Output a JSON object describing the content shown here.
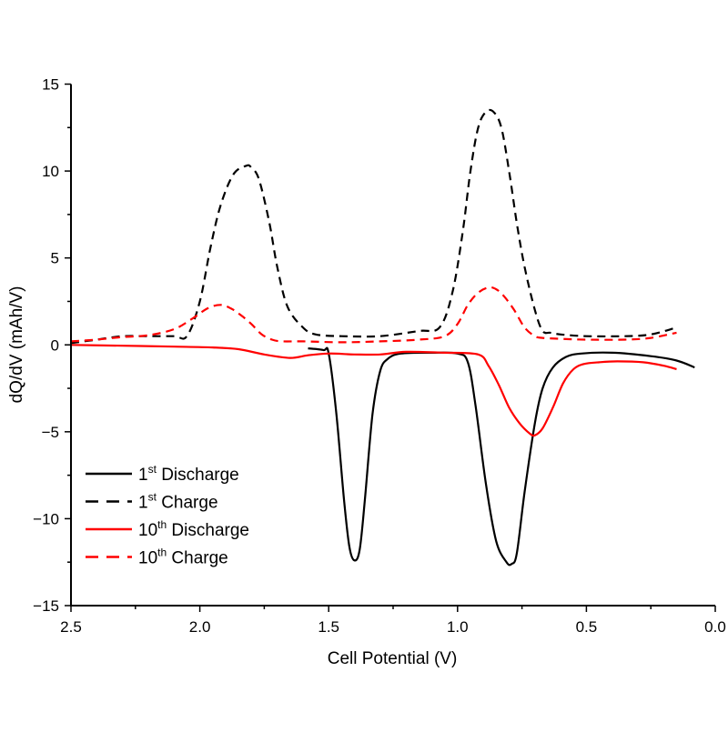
{
  "chart_data": {
    "type": "line",
    "title": "",
    "xlabel": "Cell Potential (V)",
    "ylabel": "dQ/dV (mAh/V)",
    "xlim": [
      2.5,
      0.0
    ],
    "ylim": [
      -15,
      15
    ],
    "x_reversed": true,
    "x_ticks": [
      "2.5",
      "2.0",
      "1.5",
      "1.0",
      "0.5",
      "0.0"
    ],
    "y_ticks": [
      "15",
      "10",
      "5",
      "0",
      "−5",
      "−10",
      "−15"
    ],
    "grid": false,
    "legend_position": "bottom-left",
    "series": [
      {
        "name": "1st Discharge",
        "color": "#000000",
        "dash": "solid",
        "x": [
          1.58,
          1.52,
          1.5,
          1.47,
          1.44,
          1.42,
          1.4,
          1.38,
          1.36,
          1.33,
          1.3,
          1.27,
          1.22,
          1.1,
          1.0,
          0.96,
          0.93,
          0.89,
          0.85,
          0.81,
          0.79,
          0.77,
          0.74,
          0.7,
          0.67,
          0.63,
          0.58,
          0.52,
          0.4,
          0.25,
          0.15,
          0.08
        ],
        "y": [
          -0.2,
          -0.3,
          -0.5,
          -4.0,
          -9.0,
          -11.6,
          -12.4,
          -11.8,
          -9.0,
          -4.0,
          -1.5,
          -0.8,
          -0.5,
          -0.45,
          -0.5,
          -1.0,
          -3.5,
          -8.0,
          -11.3,
          -12.5,
          -12.6,
          -12.0,
          -8.5,
          -4.5,
          -2.5,
          -1.3,
          -0.7,
          -0.5,
          -0.45,
          -0.65,
          -0.9,
          -1.3
        ]
      },
      {
        "name": "1st Charge",
        "color": "#000000",
        "dash": "dashed",
        "x": [
          2.5,
          2.4,
          2.3,
          2.2,
          2.1,
          2.05,
          2.0,
          1.96,
          1.92,
          1.87,
          1.82,
          1.8,
          1.77,
          1.73,
          1.7,
          1.66,
          1.6,
          1.55,
          1.45,
          1.3,
          1.15,
          1.07,
          1.02,
          0.98,
          0.95,
          0.92,
          0.89,
          0.86,
          0.83,
          0.8,
          0.77,
          0.74,
          0.7,
          0.67,
          0.64,
          0.6,
          0.5,
          0.35,
          0.25,
          0.15
        ],
        "y": [
          0.1,
          0.3,
          0.5,
          0.5,
          0.5,
          0.5,
          2.5,
          5.5,
          8.0,
          9.8,
          10.3,
          10.2,
          9.5,
          7.0,
          4.5,
          2.2,
          1.0,
          0.6,
          0.5,
          0.5,
          0.8,
          1.0,
          3.0,
          6.5,
          10.0,
          12.5,
          13.4,
          13.4,
          12.5,
          10.0,
          7.0,
          4.5,
          2.0,
          0.8,
          0.7,
          0.6,
          0.5,
          0.5,
          0.6,
          1.0
        ]
      },
      {
        "name": "10th Discharge",
        "color": "#ff0000",
        "dash": "solid",
        "x": [
          2.5,
          2.3,
          2.1,
          1.95,
          1.85,
          1.75,
          1.65,
          1.58,
          1.5,
          1.4,
          1.3,
          1.2,
          1.05,
          0.92,
          0.88,
          0.84,
          0.8,
          0.76,
          0.72,
          0.7,
          0.67,
          0.63,
          0.59,
          0.55,
          0.51,
          0.45,
          0.38,
          0.28,
          0.2,
          0.15
        ],
        "y": [
          0.0,
          -0.05,
          -0.1,
          -0.15,
          -0.25,
          -0.55,
          -0.75,
          -0.6,
          -0.5,
          -0.55,
          -0.55,
          -0.4,
          -0.45,
          -0.55,
          -1.2,
          -2.3,
          -3.6,
          -4.5,
          -5.1,
          -5.2,
          -4.8,
          -3.6,
          -2.2,
          -1.4,
          -1.1,
          -1.0,
          -0.95,
          -1.0,
          -1.2,
          -1.4
        ]
      },
      {
        "name": "10th Charge",
        "color": "#ff0000",
        "dash": "dashed",
        "x": [
          2.5,
          2.4,
          2.3,
          2.2,
          2.1,
          2.03,
          1.97,
          1.92,
          1.88,
          1.84,
          1.8,
          1.76,
          1.72,
          1.68,
          1.6,
          1.45,
          1.3,
          1.15,
          1.05,
          1.0,
          0.96,
          0.92,
          0.88,
          0.85,
          0.82,
          0.78,
          0.74,
          0.7,
          0.67,
          0.6,
          0.5,
          0.35,
          0.25,
          0.15
        ],
        "y": [
          0.2,
          0.3,
          0.45,
          0.55,
          0.9,
          1.5,
          2.1,
          2.3,
          2.1,
          1.7,
          1.2,
          0.6,
          0.3,
          0.2,
          0.2,
          0.15,
          0.2,
          0.3,
          0.5,
          1.2,
          2.3,
          3.0,
          3.3,
          3.2,
          2.8,
          2.0,
          1.0,
          0.5,
          0.4,
          0.35,
          0.3,
          0.3,
          0.4,
          0.7
        ]
      }
    ]
  }
}
